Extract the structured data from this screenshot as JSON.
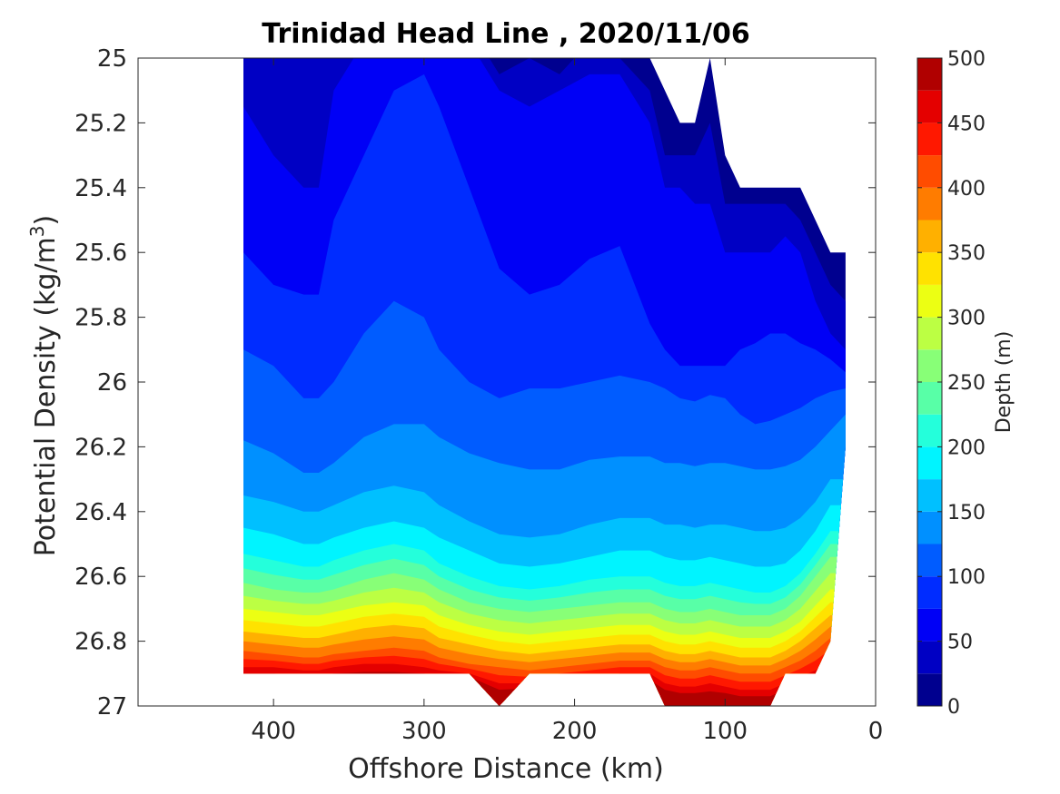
{
  "chart_data": {
    "type": "contourf",
    "title": "Trinidad Head Line , 2020/11/06",
    "xlabel": "Offshore Distance (km)",
    "ylabel_main": "Potential Density (kg/m",
    "ylabel_sup": "3",
    "ylabel_close": ")",
    "xlim": [
      490,
      0
    ],
    "ylim": [
      27,
      25
    ],
    "y_reversed": true,
    "x_reversed": true,
    "x_ticks": [
      400,
      300,
      200,
      100,
      0
    ],
    "x_tick_labels": [
      "400",
      "300",
      "200",
      "100",
      "0"
    ],
    "y_ticks": [
      25,
      25.2,
      25.4,
      25.6,
      25.8,
      26,
      26.2,
      26.4,
      26.6,
      26.8,
      27
    ],
    "y_tick_labels": [
      "25",
      "25.2",
      "25.4",
      "25.6",
      "25.8",
      "26",
      "26.2",
      "26.4",
      "26.6",
      "26.8",
      "27"
    ],
    "colorbar": {
      "label": "Depth (m)",
      "min": 0,
      "max": 500,
      "level_step": 25,
      "ticks": [
        0,
        50,
        100,
        150,
        200,
        250,
        300,
        350,
        400,
        450,
        500
      ],
      "tick_labels": [
        "0",
        "50",
        "100",
        "150",
        "200",
        "250",
        "300",
        "350",
        "400",
        "450",
        "500"
      ],
      "colors": [
        "#00008f",
        "#0000c4",
        "#0000f6",
        "#002cff",
        "#005cff",
        "#0090ff",
        "#00c0ff",
        "#00f4ff",
        "#24ffdb",
        "#58ffa7",
        "#88ff77",
        "#bcff43",
        "#ecff13",
        "#ffe200",
        "#ffb000",
        "#ff7c00",
        "#ff4c00",
        "#ff1800",
        "#e40000",
        "#b00000"
      ]
    },
    "profile_x": [
      420,
      400,
      380,
      370,
      360,
      340,
      320,
      300,
      290,
      270,
      250,
      230,
      210,
      190,
      170,
      150,
      140,
      130,
      120,
      110,
      100,
      90,
      80,
      70,
      60,
      50,
      40,
      30,
      20
    ],
    "top_boundary": [
      25,
      25,
      25,
      25,
      25,
      25,
      25,
      25,
      25,
      25,
      25,
      25,
      25,
      25,
      25,
      25,
      25.1,
      25.2,
      25.2,
      25.0,
      25.3,
      25.4,
      25.4,
      25.4,
      25.4,
      25.4,
      25.5,
      25.6,
      25.6
    ],
    "bottom_boundary": [
      26.9,
      26.9,
      26.9,
      26.9,
      26.9,
      26.9,
      26.9,
      26.9,
      26.9,
      26.9,
      27,
      26.9,
      26.9,
      26.9,
      26.9,
      26.9,
      27,
      27,
      27,
      27,
      27,
      27,
      27,
      27,
      26.9,
      26.9,
      26.9,
      26.8,
      26.2
    ],
    "isopycnal_depth_levels": [
      {
        "depth": 25,
        "sigma": [
          24.9,
          24.9,
          24.9,
          24.9,
          24.9,
          24.9,
          24.9,
          24.9,
          24.9,
          24.9,
          25.05,
          25.0,
          25.05,
          24.95,
          25.0,
          25.1,
          25.3,
          25.3,
          25.3,
          25.2,
          25.45,
          25.45,
          25.45,
          25.45,
          25.45,
          25.5,
          25.6,
          25.7,
          25.75
        ]
      },
      {
        "depth": 50,
        "sigma": [
          25.15,
          25.3,
          25.4,
          25.4,
          25.1,
          24.95,
          24.95,
          24.95,
          24.95,
          24.95,
          25.1,
          25.15,
          25.1,
          25.05,
          25.05,
          25.2,
          25.4,
          25.4,
          25.45,
          25.45,
          25.6,
          25.6,
          25.6,
          25.6,
          25.55,
          25.6,
          25.75,
          25.85,
          25.9
        ]
      },
      {
        "depth": 75,
        "sigma": [
          25.6,
          25.7,
          25.73,
          25.73,
          25.5,
          25.3,
          25.1,
          25.05,
          25.15,
          25.4,
          25.65,
          25.73,
          25.7,
          25.62,
          25.58,
          25.82,
          25.9,
          25.95,
          25.95,
          25.95,
          25.95,
          25.9,
          25.88,
          25.85,
          25.85,
          25.88,
          25.9,
          25.93,
          25.97
        ]
      },
      {
        "depth": 100,
        "sigma": [
          25.9,
          25.95,
          26.05,
          26.05,
          26.0,
          25.85,
          25.75,
          25.8,
          25.9,
          26.0,
          26.05,
          26.02,
          26.02,
          26.0,
          25.98,
          26.0,
          26.02,
          26.05,
          26.06,
          26.04,
          26.05,
          26.1,
          26.13,
          26.12,
          26.1,
          26.08,
          26.05,
          26.03,
          26.02
        ]
      },
      {
        "depth": 125,
        "sigma": [
          26.18,
          26.22,
          26.28,
          26.28,
          26.25,
          26.17,
          26.13,
          26.13,
          26.17,
          26.22,
          26.25,
          26.27,
          26.27,
          26.24,
          26.23,
          26.23,
          26.25,
          26.25,
          26.26,
          26.25,
          26.25,
          26.26,
          26.27,
          26.27,
          26.26,
          26.24,
          26.2,
          26.15,
          26.1
        ]
      },
      {
        "depth": 150,
        "sigma": [
          26.35,
          26.37,
          26.4,
          26.4,
          26.38,
          26.34,
          26.32,
          26.34,
          26.38,
          26.43,
          26.47,
          26.48,
          26.47,
          26.44,
          26.42,
          26.42,
          26.44,
          26.44,
          26.45,
          26.44,
          26.44,
          26.45,
          26.46,
          26.46,
          26.45,
          26.42,
          26.37,
          26.3,
          26.3
        ]
      },
      {
        "depth": 175,
        "sigma": [
          26.45,
          26.47,
          26.5,
          26.5,
          26.48,
          26.45,
          26.43,
          26.45,
          26.48,
          26.52,
          26.56,
          26.57,
          26.56,
          26.54,
          26.52,
          26.52,
          26.54,
          26.55,
          26.55,
          26.54,
          26.55,
          26.56,
          26.57,
          26.57,
          26.56,
          26.52,
          26.46,
          26.38,
          26.38
        ]
      },
      {
        "depth": 200,
        "sigma": [
          26.53,
          26.55,
          26.57,
          26.57,
          26.55,
          26.52,
          26.5,
          26.52,
          26.56,
          26.6,
          26.63,
          26.64,
          26.63,
          26.61,
          26.6,
          26.6,
          26.62,
          26.63,
          26.63,
          26.62,
          26.63,
          26.64,
          26.65,
          26.65,
          26.63,
          26.59,
          26.53,
          26.46,
          26.46
        ]
      },
      {
        "depth": 250,
        "sigma": [
          26.62,
          26.64,
          26.65,
          26.65,
          26.64,
          26.61,
          26.59,
          26.61,
          26.64,
          26.68,
          26.7,
          26.71,
          26.7,
          26.69,
          26.68,
          26.68,
          26.7,
          26.71,
          26.71,
          26.7,
          26.71,
          26.72,
          26.72,
          26.72,
          26.7,
          26.66,
          26.6,
          26.54,
          26.54
        ]
      },
      {
        "depth": 300,
        "sigma": [
          26.7,
          26.71,
          26.72,
          26.72,
          26.71,
          26.69,
          26.68,
          26.69,
          26.72,
          26.75,
          26.77,
          26.78,
          26.77,
          26.76,
          26.75,
          26.75,
          26.77,
          26.78,
          26.78,
          26.77,
          26.78,
          26.79,
          26.79,
          26.79,
          26.77,
          26.74,
          26.69,
          26.64,
          26.64
        ]
      },
      {
        "depth": 350,
        "sigma": [
          26.77,
          26.78,
          26.79,
          26.79,
          26.78,
          26.76,
          26.75,
          26.76,
          26.79,
          26.81,
          26.83,
          26.84,
          26.83,
          26.82,
          26.81,
          26.81,
          26.83,
          26.84,
          26.84,
          26.83,
          26.84,
          26.85,
          26.85,
          26.85,
          26.83,
          26.8,
          26.76,
          26.72,
          26.72
        ]
      },
      {
        "depth": 400,
        "sigma": [
          26.83,
          26.84,
          26.85,
          26.85,
          26.84,
          26.83,
          26.82,
          26.83,
          26.85,
          26.87,
          26.88,
          26.89,
          26.88,
          26.87,
          26.86,
          26.86,
          26.88,
          26.89,
          26.89,
          26.88,
          26.89,
          26.9,
          26.9,
          26.9,
          26.88,
          26.86,
          26.83,
          26.79,
          26.79
        ]
      },
      {
        "depth": 450,
        "sigma": [
          26.88,
          26.88,
          26.89,
          26.89,
          26.88,
          26.87,
          26.87,
          26.88,
          26.89,
          26.9,
          26.93,
          26.93,
          26.92,
          26.91,
          26.9,
          26.9,
          26.93,
          26.94,
          26.94,
          26.93,
          26.94,
          26.95,
          26.95,
          26.95,
          26.93,
          26.91,
          26.89,
          26.86,
          26.86
        ]
      },
      {
        "depth": 500,
        "sigma": [
          26.92,
          26.92,
          26.92,
          26.92,
          26.92,
          26.92,
          26.92,
          26.92,
          26.92,
          26.92,
          26.97,
          26.96,
          26.95,
          26.95,
          26.94,
          26.94,
          26.97,
          26.98,
          26.98,
          26.98,
          26.98,
          26.99,
          26.99,
          26.99,
          26.97,
          26.95,
          26.93,
          26.9,
          26.9
        ]
      }
    ]
  }
}
